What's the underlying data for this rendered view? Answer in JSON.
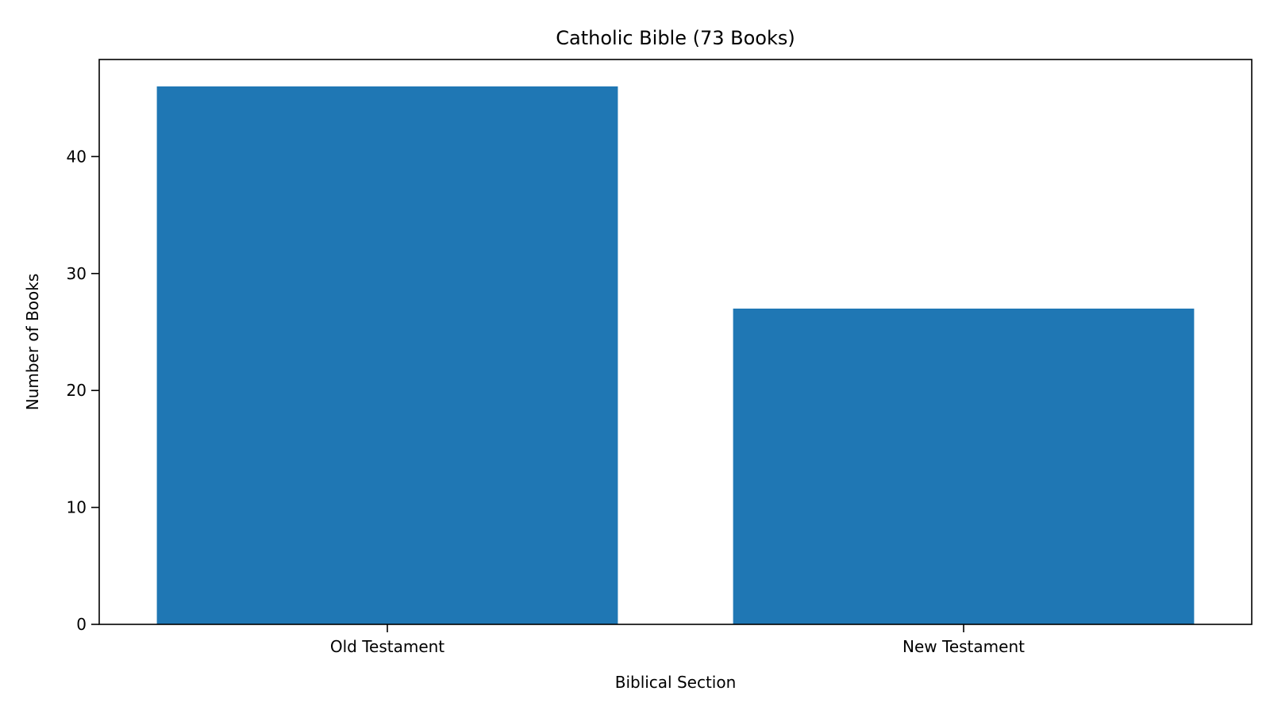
{
  "chart_data": {
    "type": "bar",
    "title": "Catholic Bible (73 Books)",
    "xlabel": "Biblical Section",
    "ylabel": "Number of Books",
    "categories": [
      "Old Testament",
      "New Testament"
    ],
    "values": [
      46,
      27
    ],
    "ylim": [
      0,
      48.3
    ],
    "yticks": [
      0,
      10,
      20,
      30,
      40
    ],
    "grid": false,
    "colors": {
      "bar": "#1f77b4",
      "axis": "#000000",
      "background": "#ffffff"
    }
  }
}
